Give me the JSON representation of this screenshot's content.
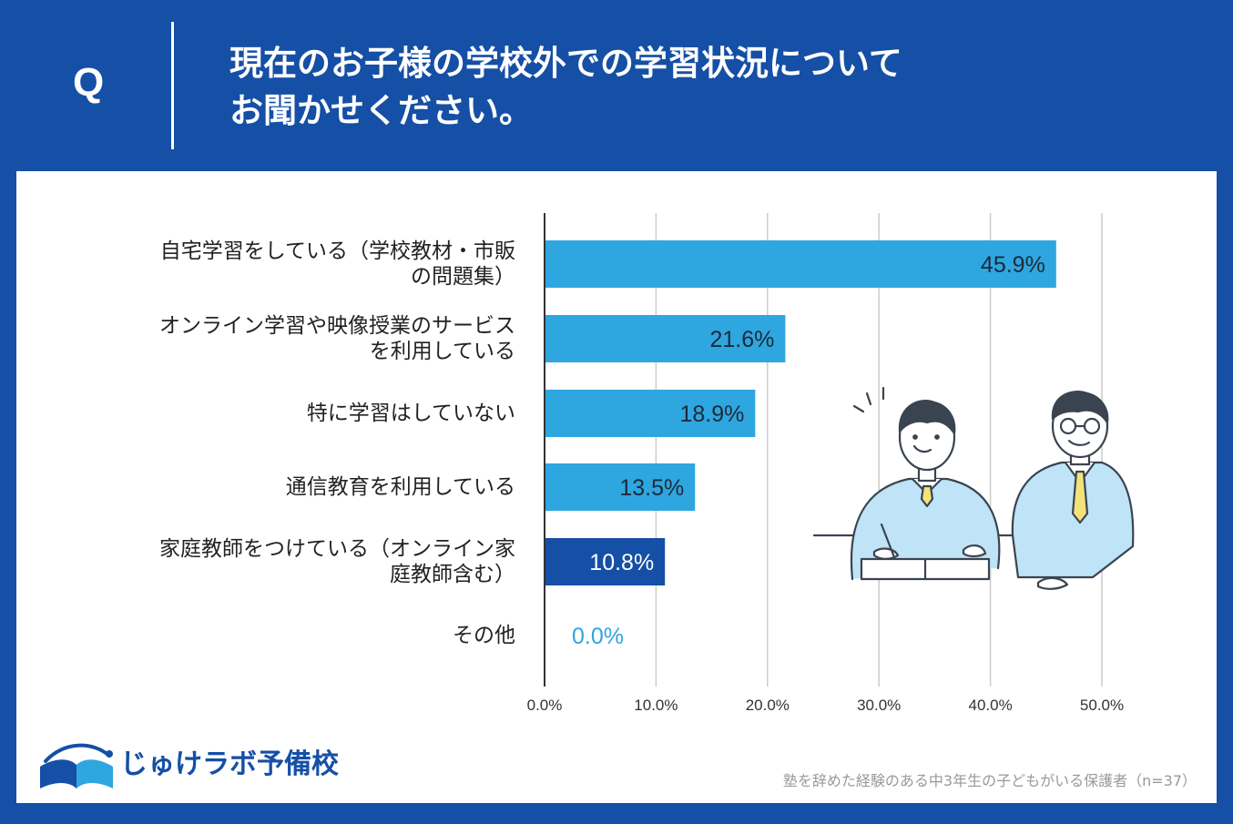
{
  "header": {
    "q_label": "Q",
    "question_line1": "現在のお子様の学校外での学習状況について",
    "question_line2": "お聞かせください。"
  },
  "chart_data": {
    "type": "bar",
    "orientation": "horizontal",
    "categories": [
      [
        "自宅学習をしている（学校教材・市販",
        "の問題集）"
      ],
      [
        "オンライン学習や映像授業のサービス",
        "を利用している"
      ],
      [
        "特に学習はしていない"
      ],
      [
        "通信教育を利用している"
      ],
      [
        "家庭教師をつけている（オンライン家",
        "庭教師含む）"
      ],
      [
        "その他"
      ]
    ],
    "values": [
      45.9,
      21.6,
      18.9,
      13.5,
      10.8,
      0.0
    ],
    "value_labels": [
      "45.9%",
      "21.6%",
      "18.9%",
      "13.5%",
      "10.8%",
      "0.0%"
    ],
    "bar_colors": [
      "#2ea6e0",
      "#2ea6e0",
      "#2ea6e0",
      "#2ea6e0",
      "#154fa6",
      "#2ea6e0"
    ],
    "xlim": [
      0,
      50
    ],
    "xticks": [
      0,
      10,
      20,
      30,
      40,
      50
    ],
    "xtick_labels": [
      "0.0%",
      "10.0%",
      "20.0%",
      "30.0%",
      "40.0%",
      "50.0%"
    ],
    "grid": true
  },
  "logo": {
    "text": "じゅけラボ予備校"
  },
  "footnote": "塾を辞めた経験のある中3年生の子どもがいる保護者（n=37）",
  "colors": {
    "brand": "#154fa6",
    "bar": "#2ea6e0",
    "bar_highlight": "#154fa6",
    "illustration_fill": "#bfe3f7",
    "tie": "#f3e27a"
  }
}
